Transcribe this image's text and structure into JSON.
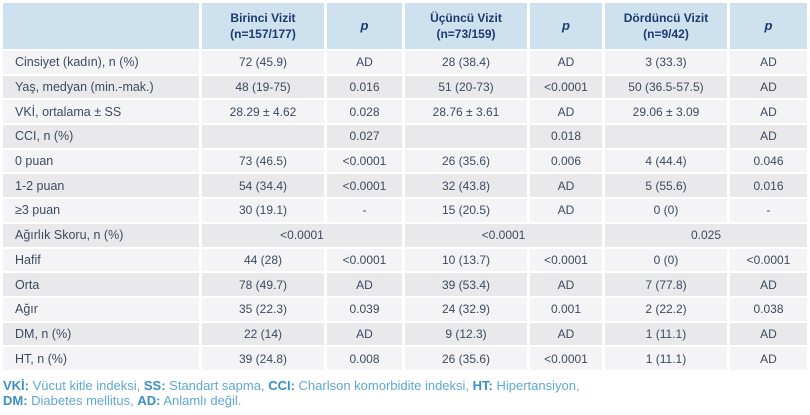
{
  "table": {
    "header": {
      "label_column": "",
      "p_label": "p",
      "visits": [
        {
          "title": "Birinci Vizit",
          "n": "(n=157/177)"
        },
        {
          "title": "Üçüncü Vizit",
          "n": "(n=73/159)"
        },
        {
          "title": "Dördüncü Vizit",
          "n": "(n=9/42)"
        }
      ]
    },
    "rows": [
      {
        "label": "Cinsiyet (kadın), n (%)",
        "cells": [
          "72 (45.9)",
          "AD",
          "28 (38.4)",
          "AD",
          "3 (33.3)",
          "AD"
        ]
      },
      {
        "label": "Yaş, medyan (min.-mak.)",
        "cells": [
          "48 (19-75)",
          "0.016",
          "51 (20-73)",
          "<0.0001",
          "50 (36.5-57.5)",
          "AD"
        ]
      },
      {
        "label": "VKİ, ortalama ± SS",
        "cells": [
          "28.29 ± 4.62",
          "0.028",
          "28.76 ± 3.61",
          "AD",
          "29.06 ± 3.09",
          "AD"
        ]
      },
      {
        "label": "CCI, n (%)",
        "cells": [
          "",
          "0.027",
          "",
          "0.018",
          "",
          "AD"
        ]
      },
      {
        "label": "0 puan",
        "cells": [
          "73 (46.5)",
          "<0.0001",
          "26 (35.6)",
          "0.006",
          "4 (44.4)",
          "0.046"
        ]
      },
      {
        "label": "1-2 puan",
        "cells": [
          "54 (34.4)",
          "<0.0001",
          "32 (43.8)",
          "AD",
          "5 (55.6)",
          "0.016"
        ]
      },
      {
        "label": "≥3 puan",
        "cells": [
          "30 (19.1)",
          "-",
          "15 (20.5)",
          "AD",
          "0 (0)",
          "-"
        ]
      },
      {
        "label": "Ağırlık Skoru, n (%)",
        "merged": true,
        "cells": [
          "<0.0001",
          "<0.0001",
          "0.025"
        ]
      },
      {
        "label": "Hafif",
        "cells": [
          "44 (28)",
          "<0.0001",
          "10 (13.7)",
          "<0.0001",
          "0 (0)",
          "<0.0001"
        ]
      },
      {
        "label": "Orta",
        "cells": [
          "78 (49.7)",
          "AD",
          "39 (53.4)",
          "AD",
          "7 (77.8)",
          "AD"
        ]
      },
      {
        "label": "Ağır",
        "cells": [
          "35 (22.3)",
          "0.039",
          "24 (32.9)",
          "0.001",
          "2 (22.2)",
          "0.038"
        ]
      },
      {
        "label": "DM, n (%)",
        "cells": [
          "22 (14)",
          "AD",
          "9 (12.3)",
          "AD",
          "1 (11.1)",
          "AD"
        ]
      },
      {
        "label": "HT, n (%)",
        "cells": [
          "39 (24.8)",
          "0.008",
          "26 (35.6)",
          "<0.0001",
          "1 (11.1)",
          "AD"
        ]
      }
    ]
  },
  "footnote": {
    "lines": [
      [
        {
          "abbr": "VKİ:",
          "text": "Vücut kitle indeksi,"
        },
        {
          "abbr": "SS:",
          "text": "Standart sapma,"
        },
        {
          "abbr": "CCI:",
          "text": "Charlson komorbidite indeksi,"
        },
        {
          "abbr": "HT:",
          "text": "Hipertansiyon,"
        }
      ],
      [
        {
          "abbr": "DM:",
          "text": "Diabetes mellitus,"
        },
        {
          "abbr": "AD:",
          "text": "Anlamlı değil."
        }
      ]
    ]
  },
  "colors": {
    "header_bg": "#cde1ef",
    "header_text": "#1c3a6e",
    "row_light": "#f4f4f6",
    "row_dark": "#e9e9ec",
    "body_text": "#3d4a5e",
    "footnote_abbr": "#3a90c2",
    "footnote_text": "#5fa8d4"
  }
}
